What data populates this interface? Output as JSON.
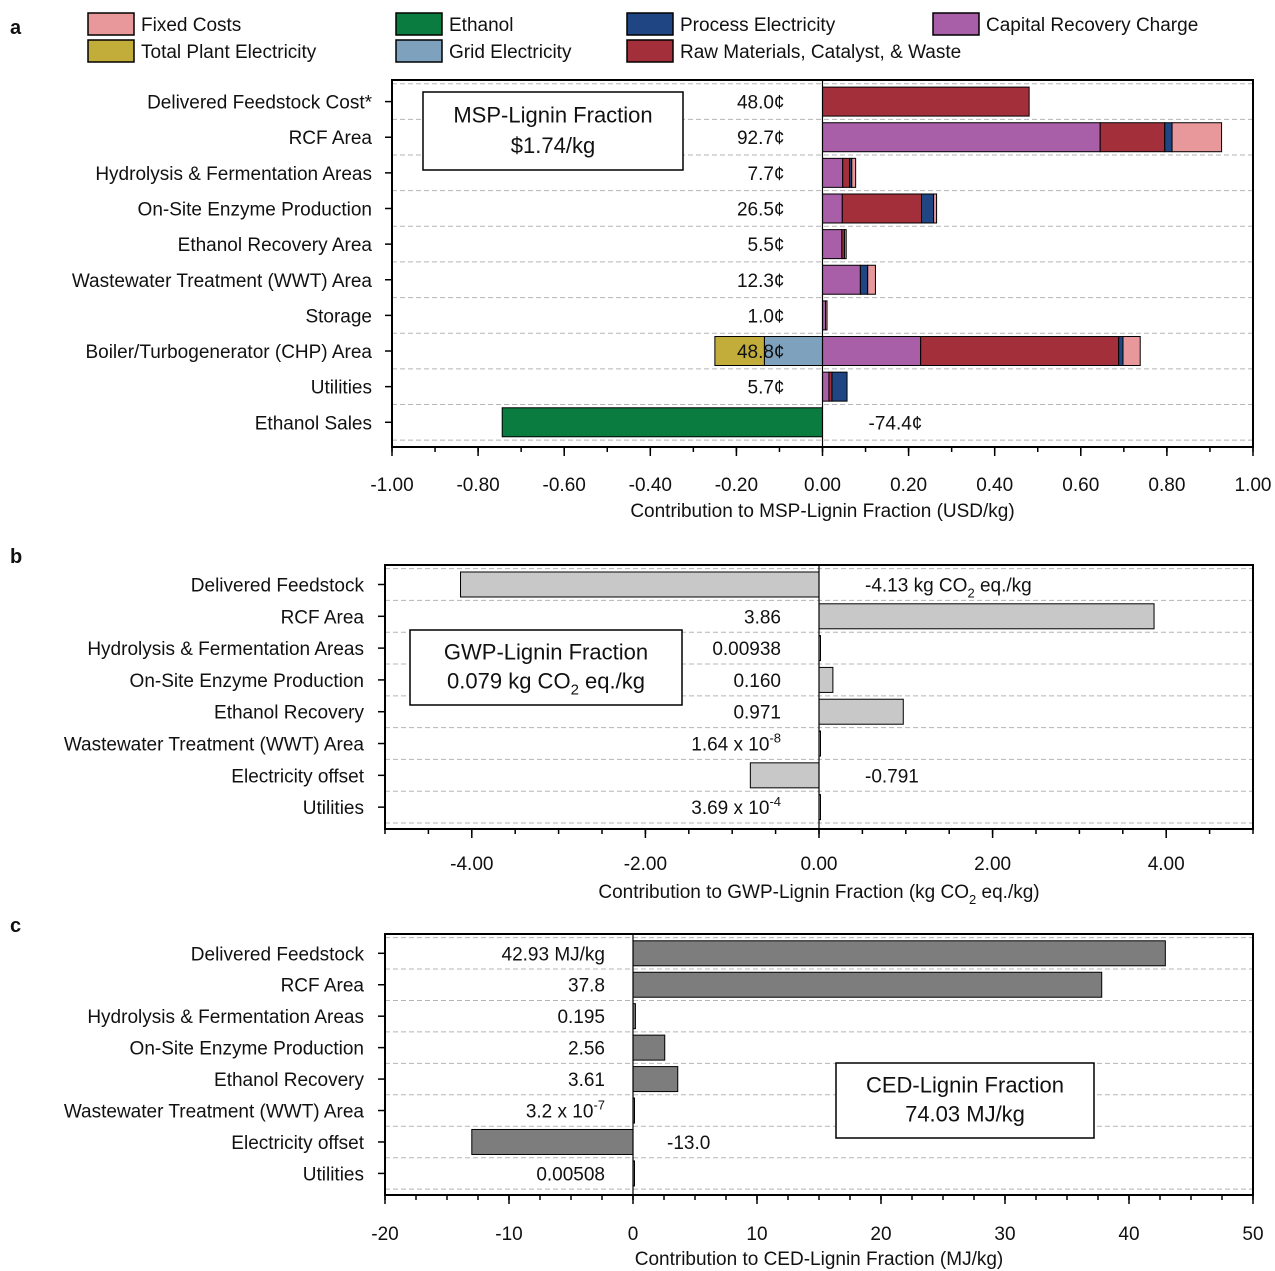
{
  "chart_data": [
    {
      "panel": "a",
      "type": "bar",
      "orientation": "horizontal",
      "stacked": true,
      "xlabel": "Contribution to MSP-Lignin Fraction (USD/kg)",
      "xlim": [
        -1.0,
        1.0
      ],
      "ticks": [
        -1.0,
        -0.8,
        -0.6,
        -0.4,
        -0.2,
        0.0,
        0.2,
        0.4,
        0.6,
        0.8,
        1.0
      ],
      "tick_labels": [
        "-1.00",
        "-0.80",
        "-0.60",
        "-0.40",
        "-0.20",
        "0.00",
        "0.20",
        "0.40",
        "0.60",
        "0.80",
        "1.00"
      ],
      "grid": "horizontal dashed",
      "legend": [
        {
          "key": "fixed",
          "name": "Fixed Costs",
          "color": "#e8989b"
        },
        {
          "key": "ethanol",
          "name": "Ethanol",
          "color": "#0a7c3f"
        },
        {
          "key": "process",
          "name": "Process Electricity",
          "color": "#1f4683"
        },
        {
          "key": "capital",
          "name": "Capital Recovery Charge",
          "color": "#a95ea8"
        },
        {
          "key": "plant",
          "name": "Total Plant Electricity",
          "color": "#c3ad3a"
        },
        {
          "key": "grid",
          "name": "Grid Electricity",
          "color": "#7ea1bd"
        },
        {
          "key": "raw",
          "name": "Raw Materials, Catalyst, & Waste",
          "color": "#a22f3a"
        }
      ],
      "summary_box": {
        "title": "MSP-Lignin Fraction",
        "value": "$1.74/kg"
      },
      "categories": [
        {
          "name": "Delivered Feedstock Cost*",
          "label": "48.0¢",
          "label_side": "left",
          "segments": [
            {
              "key": "raw",
              "value": 0.48
            }
          ]
        },
        {
          "name": "RCF Area",
          "label": "92.7¢",
          "label_side": "left",
          "segments": [
            {
              "key": "capital",
              "value": 0.645
            },
            {
              "key": "raw",
              "value": 0.15
            },
            {
              "key": "process",
              "value": 0.017
            },
            {
              "key": "fixed",
              "value": 0.115
            }
          ]
        },
        {
          "name": "Hydrolysis & Fermentation Areas",
          "label": "7.7¢",
          "label_side": "left",
          "segments": [
            {
              "key": "capital",
              "value": 0.047
            },
            {
              "key": "raw",
              "value": 0.016
            },
            {
              "key": "process",
              "value": 0.005
            },
            {
              "key": "fixed",
              "value": 0.009
            }
          ]
        },
        {
          "name": "On-Site Enzyme Production",
          "label": "26.5¢",
          "label_side": "left",
          "segments": [
            {
              "key": "capital",
              "value": 0.046
            },
            {
              "key": "raw",
              "value": 0.184
            },
            {
              "key": "process",
              "value": 0.028
            },
            {
              "key": "fixed",
              "value": 0.007
            }
          ]
        },
        {
          "name": "Ethanol Recovery Area",
          "label": "5.5¢",
          "label_side": "left",
          "segments": [
            {
              "key": "capital",
              "value": 0.045
            },
            {
              "key": "raw",
              "value": 0.006
            },
            {
              "key": "fixed",
              "value": 0.004
            }
          ]
        },
        {
          "name": "Wastewater Treatment (WWT) Area",
          "label": "12.3¢",
          "label_side": "left",
          "segments": [
            {
              "key": "capital",
              "value": 0.088
            },
            {
              "key": "process",
              "value": 0.017
            },
            {
              "key": "fixed",
              "value": 0.018
            }
          ]
        },
        {
          "name": "Storage",
          "label": "1.0¢",
          "label_side": "left",
          "segments": [
            {
              "key": "capital",
              "value": 0.007
            },
            {
              "key": "fixed",
              "value": 0.003
            }
          ]
        },
        {
          "name": "Boiler/Turbogenerator (CHP) Area",
          "label": "48.8¢",
          "label_side": "left",
          "segments": [
            {
              "key": "grid",
              "value": -0.135
            },
            {
              "key": "plant",
              "value": -0.115
            },
            {
              "key": "capital",
              "value": 0.228
            },
            {
              "key": "raw",
              "value": 0.46
            },
            {
              "key": "process",
              "value": 0.01
            },
            {
              "key": "fixed",
              "value": 0.04
            }
          ]
        },
        {
          "name": "Utilities",
          "label": "5.7¢",
          "label_side": "left",
          "segments": [
            {
              "key": "capital",
              "value": 0.015
            },
            {
              "key": "raw",
              "value": 0.007
            },
            {
              "key": "process",
              "value": 0.035
            }
          ]
        },
        {
          "name": "Ethanol Sales",
          "label": "-74.4¢",
          "label_side": "right",
          "segments": [
            {
              "key": "ethanol",
              "value": -0.744
            }
          ]
        }
      ]
    },
    {
      "panel": "b",
      "type": "bar",
      "orientation": "horizontal",
      "xlabel": "Contribution to GWP-Lignin Fraction (kg CO₂ eq./kg)",
      "xlim": [
        -5.0,
        5.0
      ],
      "ticks": [
        -4.0,
        -2.0,
        0.0,
        2.0,
        4.0
      ],
      "tick_labels": [
        "-4.00",
        "-2.00",
        "0.00",
        "2.00",
        "4.00"
      ],
      "grid": "horizontal dashed",
      "bar_color": "#c8c8c8",
      "summary_box": {
        "title": "GWP-Lignin Fraction",
        "value": "0.079 kg CO₂ eq./kg"
      },
      "categories": [
        "Delivered Feedstock",
        "RCF Area",
        "Hydrolysis & Fermentation Areas",
        "On-Site Enzyme Production",
        "Ethanol Recovery",
        "Wastewater Treatment (WWT) Area",
        "Electricity offset",
        "Utilities"
      ],
      "values": [
        -4.13,
        3.86,
        0.00938,
        0.16,
        0.971,
        1.64e-08,
        -0.791,
        0.000369
      ],
      "labels": [
        "-4.13 kg CO₂ eq./kg",
        "3.86",
        "0.00938",
        "0.160",
        "0.971",
        "1.64 x 10⁻⁸",
        "-0.791",
        "3.69 x 10⁻⁴"
      ],
      "label_sides": [
        "right",
        "left",
        "left",
        "left",
        "left",
        "left",
        "right",
        "left"
      ]
    },
    {
      "panel": "c",
      "type": "bar",
      "orientation": "horizontal",
      "xlabel": "Contribution to CED-Lignin Fraction (MJ/kg)",
      "xlim": [
        -20,
        50
      ],
      "ticks": [
        -20,
        -10,
        0,
        10,
        20,
        30,
        40,
        50
      ],
      "tick_labels": [
        "-20",
        "-10",
        "0",
        "10",
        "20",
        "30",
        "40",
        "50"
      ],
      "grid": "horizontal dashed",
      "bar_color": "#7d7d7d",
      "summary_box": {
        "title": "CED-Lignin Fraction",
        "value": "74.03 MJ/kg"
      },
      "categories": [
        "Delivered Feedstock",
        "RCF Area",
        "Hydrolysis & Fermentation Areas",
        "On-Site Enzyme Production",
        "Ethanol Recovery",
        "Wastewater Treatment (WWT) Area",
        "Electricity offset",
        "Utilities"
      ],
      "values": [
        42.93,
        37.8,
        0.195,
        2.56,
        3.61,
        3.2e-07,
        -13.0,
        0.00508
      ],
      "labels": [
        "42.93 MJ/kg",
        "37.8",
        "0.195",
        "2.56",
        "3.61",
        "3.2 x 10⁻⁷",
        "-13.0",
        "0.00508"
      ],
      "label_sides": [
        "left",
        "left",
        "left",
        "left",
        "left",
        "left",
        "right",
        "left"
      ]
    }
  ]
}
